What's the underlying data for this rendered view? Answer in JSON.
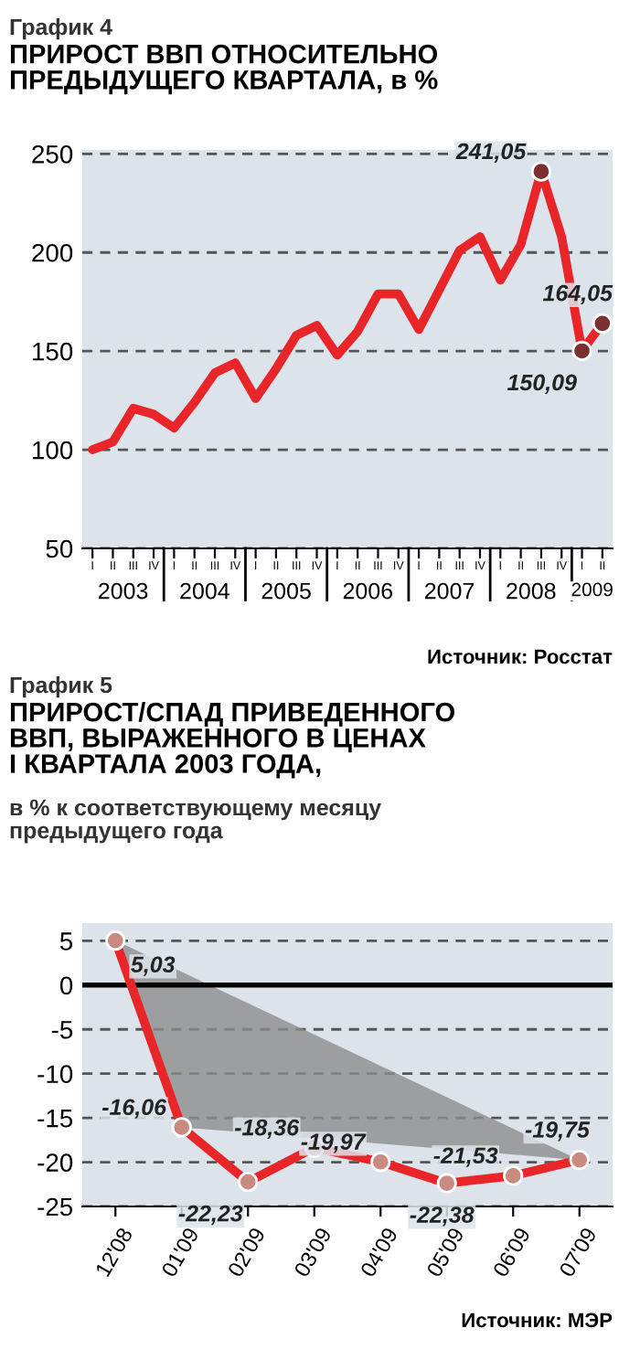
{
  "chart_data": [
    {
      "type": "line",
      "title": "ПРИРОСТ ВВП ОТНОСИТЕЛЬНО\nПРЕДЫДУЩЕГО КВАРТАЛА, в %",
      "annotations": [
        "График 4",
        "2003",
        "2004",
        "2005",
        "2006",
        "2007",
        "2008",
        "2009",
        "Источник: Росстат"
      ],
      "categories": [
        "I",
        "II",
        "III",
        "IV",
        "I",
        "II",
        "III",
        "IV",
        "I",
        "II",
        "III",
        "IV",
        "I",
        "II",
        "III",
        "IV",
        "I",
        "II",
        "III",
        "IV",
        "I",
        "II",
        "III",
        "IV",
        "I",
        "II"
      ],
      "series": [
        {
          "color": "#e8262a",
          "values": [
            100,
            104,
            121,
            118,
            111,
            124,
            139,
            144,
            126,
            141,
            158,
            163,
            148,
            160,
            179,
            179,
            161,
            181,
            201,
            208,
            186,
            204,
            241.05,
            208,
            150.09,
            164.05
          ],
          "value_labels": [
            null,
            null,
            null,
            null,
            null,
            null,
            null,
            null,
            null,
            null,
            null,
            null,
            null,
            null,
            null,
            null,
            null,
            null,
            null,
            null,
            null,
            null,
            "241,05",
            null,
            "150,09",
            "164,05"
          ]
        }
      ],
      "ylim": [
        50,
        252
      ],
      "yticks": [
        50,
        100,
        150,
        200,
        250
      ],
      "grid": "y",
      "line_style": "solid"
    },
    {
      "type": "line",
      "title": "ПРИРОСТ/СПАД ПРИВЕДЕННОГО\nВВП, ВЫРАЖЕННОГО В ЦЕНАХ\nI КВАРТАЛА 2003 ГОДА,",
      "subtitle": "в % к соответствующему месяцу\nпредыдущего года",
      "annotations": [
        "График 5",
        "Источник: МЭР"
      ],
      "categories": [
        "12'08",
        "01'09",
        "02'09",
        "03'09",
        "04'09",
        "05'09",
        "06'09",
        "07'09"
      ],
      "series": [
        {
          "color": "#e8262a",
          "values": [
            5.03,
            -16.06,
            -22.23,
            -18.36,
            -19.97,
            -22.38,
            -21.53,
            -19.75
          ],
          "value_labels": [
            "5,03",
            "-16,06",
            "-22,23",
            "-18,36",
            "-19,97",
            "-22,38",
            "-21,53",
            "-19,75"
          ]
        }
      ],
      "ylim": [
        -25,
        7
      ],
      "yticks": [
        {
          "value": 5,
          "label": "5"
        },
        {
          "value": 0,
          "label": "0"
        },
        {
          "value": -5,
          "label": "-5"
        },
        {
          "value": -10,
          "label": "-10"
        },
        {
          "value": -15,
          "label": "-15"
        },
        {
          "value": -20,
          "label": "-20"
        },
        {
          "value": -25,
          "label": "-25"
        }
      ],
      "ref_lines": [
        {
          "axis": "y",
          "value": 0,
          "color": "#000000"
        }
      ],
      "grid": "y",
      "marker": "circle",
      "line_style": "solid"
    }
  ]
}
